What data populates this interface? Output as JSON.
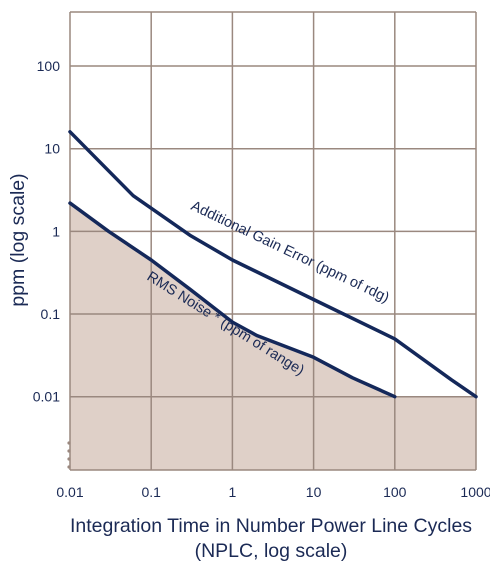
{
  "chart_data": {
    "type": "line",
    "xlabel": "Integration Time in Number Power Line Cycles",
    "xlabel_line2": "(NPLC, log scale)",
    "ylabel": "ppm (log scale)",
    "x_scale": "log",
    "y_scale": "log",
    "xlim": [
      0.01,
      1000
    ],
    "ylim": [
      0.0013,
      450
    ],
    "x_ticks": [
      0.01,
      0.1,
      1,
      10,
      100,
      1000
    ],
    "x_tick_labels": [
      "0.01",
      "0.1",
      "1",
      "10",
      "100",
      "1000"
    ],
    "y_ticks": [
      0.01,
      0.1,
      1,
      10,
      100
    ],
    "y_tick_labels": [
      "0.01",
      "0.1",
      "1",
      "10",
      "100"
    ],
    "grid": true,
    "series": [
      {
        "name": "Additional Gain Error (ppm of rdg)",
        "x": [
          0.01,
          0.06,
          0.3,
          1,
          10,
          100,
          500,
          1000
        ],
        "y": [
          16,
          2.7,
          0.9,
          0.45,
          0.15,
          0.05,
          0.016,
          0.01
        ]
      },
      {
        "name": "RMS Noise * (ppm of range)",
        "x": [
          0.01,
          0.03,
          0.1,
          0.3,
          1,
          2,
          10,
          30,
          100
        ],
        "y": [
          2.2,
          1.0,
          0.45,
          0.2,
          0.08,
          0.055,
          0.03,
          0.017,
          0.01
        ],
        "fill_below": true,
        "fill_extends_at_floor": 0.01
      }
    ],
    "colors": {
      "background": "#ffffff",
      "grid": "#9a887f",
      "line": "#14285a",
      "fill": "#dfd0c8",
      "text": "#1b2a55"
    }
  }
}
